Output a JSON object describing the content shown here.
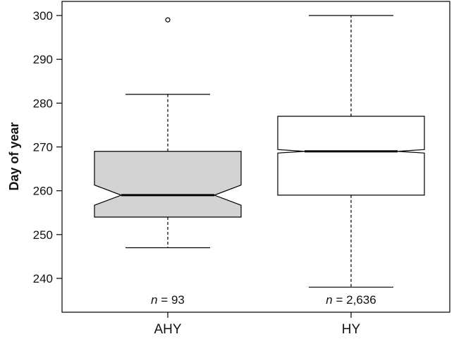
{
  "chart_data": {
    "type": "boxplot",
    "notched": true,
    "title": "",
    "xlabel": "",
    "ylabel": "Day of year",
    "ylim": [
      233,
      305
    ],
    "yticks": [
      240,
      250,
      260,
      270,
      280,
      290,
      300
    ],
    "grid": false,
    "categories": [
      "AHY",
      "HY"
    ],
    "boxes": [
      {
        "category": "AHY",
        "whisker_low": 247,
        "q1": 254,
        "median": 259,
        "q3": 269,
        "whisker_high": 282,
        "notch_low": 256.7,
        "notch_high": 261.3,
        "outliers": [
          299
        ],
        "fill": "#d3d3d3",
        "n_prefix": "n",
        "n_value": "= 93"
      },
      {
        "category": "HY",
        "whisker_low": 238,
        "q1": 259,
        "median": 269,
        "q3": 277,
        "whisker_high": 300,
        "notch_low": 268.6,
        "notch_high": 269.4,
        "outliers": [],
        "fill": "#ffffff",
        "n_prefix": "n",
        "n_value": "= 2,636"
      }
    ]
  }
}
